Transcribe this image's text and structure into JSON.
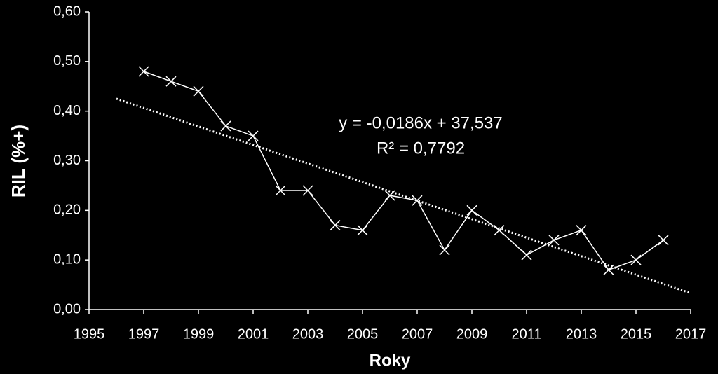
{
  "chart_data": {
    "type": "line",
    "x": [
      1997,
      1998,
      1999,
      2000,
      2001,
      2002,
      2003,
      2004,
      2005,
      2006,
      2007,
      2008,
      2009,
      2010,
      2011,
      2012,
      2013,
      2014,
      2015,
      2016
    ],
    "series": [
      {
        "color": "#ffffff",
        "values": [
          0.48,
          0.46,
          0.44,
          0.37,
          0.35,
          0.24,
          0.24,
          0.17,
          0.16,
          0.23,
          0.22,
          0.12,
          0.2,
          0.16,
          0.11,
          0.14,
          0.16,
          0.08,
          0.1,
          0.14
        ]
      }
    ],
    "trendline": {
      "x": [
        1996,
        2017
      ],
      "values": [
        0.425,
        0.033
      ],
      "color": "#ffffff"
    },
    "annotation": [
      "y = -0,0186x + 37,537",
      "R² = 0,7792"
    ],
    "xlabel": "Roky",
    "ylabel": "RIL (%+)",
    "xlim": [
      1995,
      2017
    ],
    "xticks": [
      1995,
      1997,
      1999,
      2001,
      2003,
      2005,
      2007,
      2009,
      2011,
      2013,
      2015,
      2017
    ],
    "ylim": [
      0,
      0.6
    ],
    "yticks": [
      {
        "value": 0,
        "label": "0,00"
      },
      {
        "value": 0.1,
        "label": "0,10"
      },
      {
        "value": 0.2,
        "label": "0,20"
      },
      {
        "value": 0.3,
        "label": "0,30"
      },
      {
        "value": 0.4,
        "label": "0,40"
      },
      {
        "value": 0.5,
        "label": "0,50"
      },
      {
        "value": 0.6,
        "label": "0,60"
      }
    ]
  }
}
